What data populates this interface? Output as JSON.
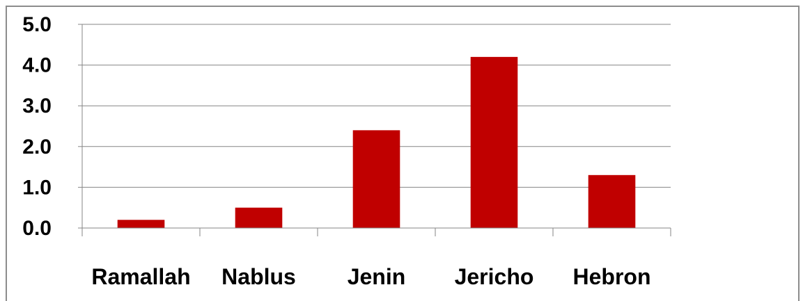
{
  "chart_data": {
    "type": "bar",
    "categories": [
      "Ramallah",
      "Nablus",
      "Jenin",
      "Jericho",
      "Hebron"
    ],
    "values": [
      0.2,
      0.5,
      2.4,
      4.2,
      1.3
    ],
    "ylim": [
      0,
      5
    ],
    "yticks": [
      "0.0",
      "1.0",
      "2.0",
      "3.0",
      "4.0",
      "5.0"
    ],
    "title": "",
    "xlabel": "",
    "ylabel": "",
    "grid": true,
    "legend": "none",
    "bar_color": "#c00000",
    "grid_color": "#868686"
  }
}
